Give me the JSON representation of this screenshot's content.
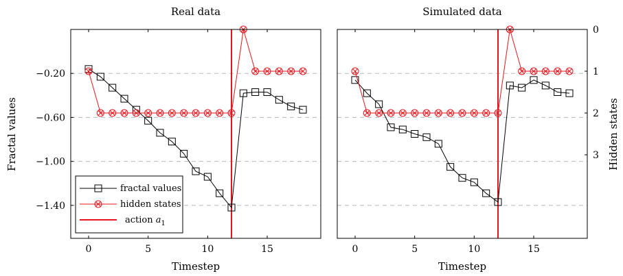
{
  "chart_data": [
    {
      "type": "line",
      "title": "Real data",
      "xlabel": "Timestep",
      "ylabel": "Fractal values",
      "y2label": "",
      "xlim": [
        -1.5,
        19.5
      ],
      "ylim": [
        -1.7,
        0.2
      ],
      "y2lim": [
        5,
        0
      ],
      "xticks": [
        "0",
        "5",
        "10",
        "15"
      ],
      "yticks": [
        "-0.20",
        "-0.60",
        "-1.00",
        "-1.40"
      ],
      "y2ticks": [],
      "grid": "horizontal dashed",
      "event": {
        "name": "action a1",
        "x": 12
      },
      "series": [
        {
          "name": "fractal values",
          "axis": "left",
          "color": "#000000",
          "marker": "square",
          "x": [
            0,
            1,
            2,
            3,
            4,
            5,
            6,
            7,
            8,
            9,
            10,
            11,
            12,
            13,
            14,
            15,
            16,
            17,
            18
          ],
          "y": [
            -0.16,
            -0.23,
            -0.33,
            -0.43,
            -0.53,
            -0.63,
            -0.74,
            -0.82,
            -0.93,
            -1.09,
            -1.14,
            -1.29,
            -1.42,
            -0.38,
            -0.37,
            -0.37,
            -0.44,
            -0.5,
            -0.53
          ]
        },
        {
          "name": "hidden states",
          "axis": "right",
          "color": "#e8141b",
          "marker": "otimes",
          "x": [
            0,
            1,
            2,
            3,
            4,
            5,
            6,
            7,
            8,
            9,
            10,
            11,
            12,
            13,
            14,
            15,
            16,
            17,
            18
          ],
          "y": [
            1,
            2,
            2,
            2,
            2,
            2,
            2,
            2,
            2,
            2,
            2,
            2,
            2,
            0,
            1,
            1,
            1,
            1,
            1
          ]
        }
      ]
    },
    {
      "type": "line",
      "title": "Simulated data",
      "xlabel": "Timestep",
      "ylabel": "",
      "y2label": "Hidden states",
      "xlim": [
        -1.5,
        19.5
      ],
      "ylim": [
        -1.7,
        0.2
      ],
      "y2lim": [
        5,
        0
      ],
      "xticks": [
        "0",
        "5",
        "10",
        "15"
      ],
      "yticks": [],
      "y2ticks": [
        "0",
        "1",
        "2",
        "3"
      ],
      "grid": "horizontal dashed",
      "event": {
        "name": "action a1",
        "x": 12
      },
      "series": [
        {
          "name": "fractal values",
          "axis": "left",
          "color": "#000000",
          "marker": "square",
          "x": [
            0,
            1,
            2,
            3,
            4,
            5,
            6,
            7,
            8,
            9,
            10,
            11,
            12,
            13,
            14,
            15,
            16,
            17,
            18
          ],
          "y": [
            -0.26,
            -0.38,
            -0.48,
            -0.69,
            -0.71,
            -0.75,
            -0.78,
            -0.84,
            -1.05,
            -1.15,
            -1.19,
            -1.29,
            -1.37,
            -0.31,
            -0.33,
            -0.26,
            -0.31,
            -0.37,
            -0.38
          ]
        },
        {
          "name": "hidden states",
          "axis": "right",
          "color": "#e8141b",
          "marker": "otimes",
          "x": [
            0,
            1,
            2,
            3,
            4,
            5,
            6,
            7,
            8,
            9,
            10,
            11,
            12,
            13,
            14,
            15,
            16,
            17,
            18
          ],
          "y": [
            1,
            2,
            2,
            2,
            2,
            2,
            2,
            2,
            2,
            2,
            2,
            2,
            2,
            0,
            1,
            1,
            1,
            1,
            1
          ]
        }
      ]
    }
  ],
  "legend": {
    "items": [
      {
        "key": "fractal",
        "label": "fractal values"
      },
      {
        "key": "hidden",
        "label": "hidden states"
      },
      {
        "key": "action",
        "label": "action ",
        "subscript_base": "a",
        "subscript": "1"
      }
    ]
  }
}
